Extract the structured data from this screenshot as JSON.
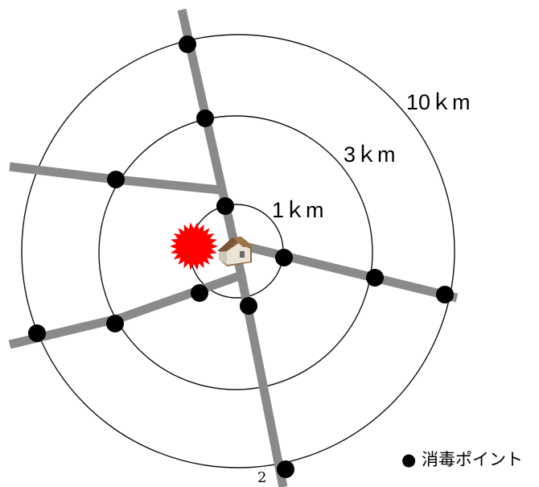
{
  "rings": [
    {
      "id": "ring-1km",
      "label": "1ｋm"
    },
    {
      "id": "ring-3km",
      "label": "3ｋm"
    },
    {
      "id": "ring-10km",
      "label": "10ｋm"
    }
  ],
  "legend": {
    "marker": "●",
    "label": "消毒ポイント"
  },
  "page_number": "2",
  "icons": {
    "outbreak": "red-starburst-icon",
    "farm": "house-icon"
  },
  "colors": {
    "road": "#8a8a8a",
    "outbreak": "#ff0000",
    "ring": "#111111",
    "dot": "#000000"
  }
}
